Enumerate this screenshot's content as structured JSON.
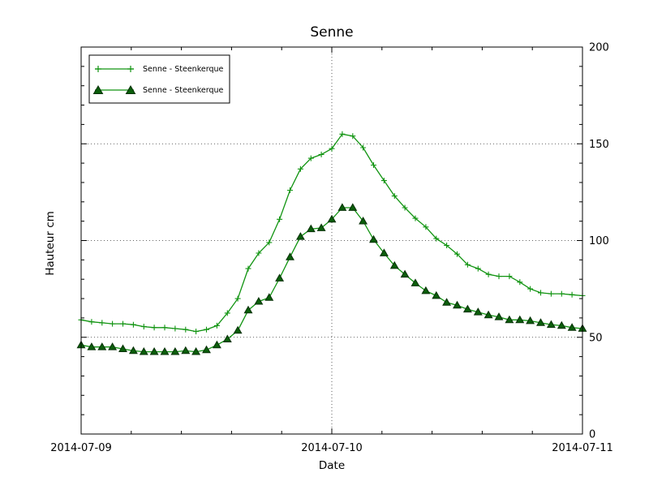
{
  "figure": {
    "background": "#ffffff",
    "plot_border_color": "#000000",
    "grid_color": "#333333"
  },
  "chart_data": {
    "type": "line",
    "title": "Senne",
    "xlabel": "Date",
    "ylabel": "Hauteur cm",
    "x_tick_labels": [
      "2014-07-09",
      "2014-07-10",
      "2014-07-11"
    ],
    "x_major_ticks_hours": [
      0,
      24,
      48
    ],
    "x_minor_tick_step_hours": 4.8,
    "y_ticks": [
      0,
      50,
      100,
      150,
      200
    ],
    "y_minor_tick_step": 10,
    "ylim": [
      0,
      200
    ],
    "xlim_hours": [
      0,
      48
    ],
    "x_unit": "hours after 2014-07-09 00:00",
    "grid": "dotted horizontal lines at y=50,100,150 and vertical line at 2014-07-10",
    "legend_position": "upper left",
    "x": [
      0,
      1,
      2,
      3,
      4,
      5,
      6,
      7,
      8,
      9,
      10,
      11,
      12,
      13,
      14,
      15,
      16,
      17,
      18,
      19,
      20,
      21,
      22,
      23,
      24,
      25,
      26,
      27,
      28,
      29,
      30,
      31,
      32,
      33,
      34,
      35,
      36,
      37,
      38,
      39,
      40,
      41,
      42,
      43,
      44,
      45,
      46,
      47,
      48
    ],
    "series": [
      {
        "name": "Senne - Steenkerque",
        "marker": "plus",
        "line_color": "#119411",
        "marker_color": "#119411",
        "values": [
          59,
          58,
          57.5,
          57,
          57,
          56.5,
          55.5,
          55,
          55,
          54.5,
          54,
          53,
          54,
          56,
          62.5,
          70,
          85.5,
          93.5,
          99,
          111,
          126,
          137,
          142.5,
          144.5,
          147.5,
          155,
          154,
          148,
          139,
          131,
          123,
          117,
          111.5,
          107,
          101,
          97.5,
          93,
          87.5,
          85.5,
          82.5,
          81.5,
          81.5,
          78.5,
          75,
          73,
          72.5,
          72.5,
          72,
          71.5
        ]
      },
      {
        "name": "Senne - Steenkerque",
        "marker": "triangle",
        "line_color": "#119411",
        "marker_fill": "#0b5e0b",
        "marker_edge": "#083008",
        "values": [
          46,
          45,
          45,
          45,
          44,
          43,
          42.5,
          42.5,
          42.5,
          42.5,
          43,
          42.5,
          43.5,
          46,
          49,
          53.5,
          64,
          68.5,
          70.5,
          80.5,
          91.5,
          102,
          106,
          106.5,
          111,
          117,
          117,
          110,
          100.5,
          93.5,
          87,
          82.5,
          78,
          74,
          71.5,
          68,
          66.5,
          64.5,
          63,
          61.5,
          60.5,
          59,
          59,
          58.5,
          57.5,
          56.5,
          56,
          55,
          54.5
        ]
      }
    ]
  }
}
